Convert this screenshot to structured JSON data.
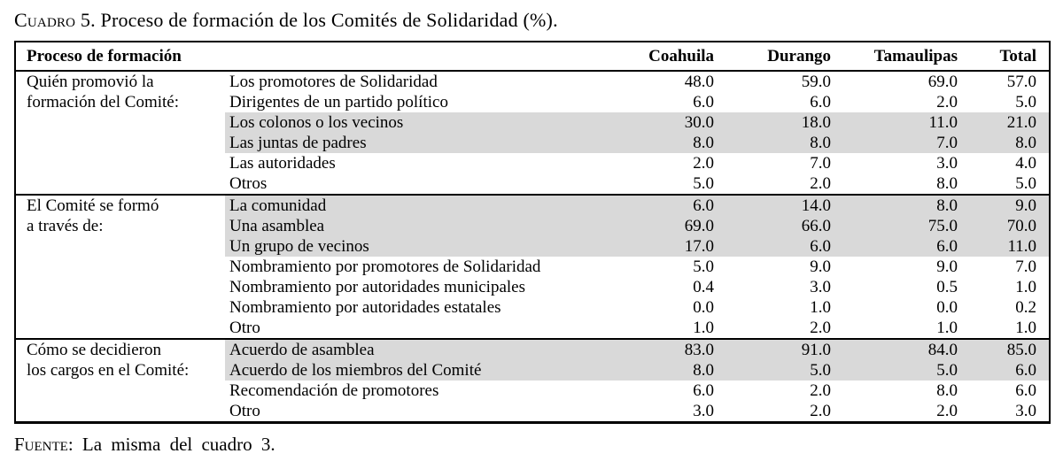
{
  "title": {
    "prefix": "Cuadro 5.",
    "text": "Proceso de formación de los Comités de Solidaridad (%)."
  },
  "table": {
    "header": {
      "col_process": "Proceso de formación",
      "columns": [
        "Coahuila",
        "Durango",
        "Tamaulipas",
        "Total"
      ]
    },
    "sections": [
      {
        "category": [
          "Quién promovió la",
          "formación del Comité:"
        ],
        "rows": [
          {
            "label": "Los promotores de Solidaridad",
            "values": [
              "48.0",
              "59.0",
              "69.0",
              "57.0"
            ],
            "shaded": false
          },
          {
            "label": "Dirigentes de un partido político",
            "values": [
              "6.0",
              "6.0",
              "2.0",
              "5.0"
            ],
            "shaded": false
          },
          {
            "label": "Los colonos o los vecinos",
            "values": [
              "30.0",
              "18.0",
              "11.0",
              "21.0"
            ],
            "shaded": true
          },
          {
            "label": "Las juntas de padres",
            "values": [
              "8.0",
              "8.0",
              "7.0",
              "8.0"
            ],
            "shaded": true
          },
          {
            "label": "Las autoridades",
            "values": [
              "2.0",
              "7.0",
              "3.0",
              "4.0"
            ],
            "shaded": false
          },
          {
            "label": "Otros",
            "values": [
              "5.0",
              "2.0",
              "8.0",
              "5.0"
            ],
            "shaded": false
          }
        ]
      },
      {
        "category": [
          "El Comité se formó",
          "a través de:"
        ],
        "rows": [
          {
            "label": "La comunidad",
            "values": [
              "6.0",
              "14.0",
              "8.0",
              "9.0"
            ],
            "shaded": true
          },
          {
            "label": "Una asamblea",
            "values": [
              "69.0",
              "66.0",
              "75.0",
              "70.0"
            ],
            "shaded": true
          },
          {
            "label": "Un grupo de vecinos",
            "values": [
              "17.0",
              "6.0",
              "6.0",
              "11.0"
            ],
            "shaded": true
          },
          {
            "label": "Nombramiento por promotores de Solidaridad",
            "values": [
              "5.0",
              "9.0",
              "9.0",
              "7.0"
            ],
            "shaded": false
          },
          {
            "label": "Nombramiento por autoridades municipales",
            "values": [
              "0.4",
              "3.0",
              "0.5",
              "1.0"
            ],
            "shaded": false
          },
          {
            "label": "Nombramiento por autoridades estatales",
            "values": [
              "0.0",
              "1.0",
              "0.0",
              "0.2"
            ],
            "shaded": false
          },
          {
            "label": "Otro",
            "values": [
              "1.0",
              "2.0",
              "1.0",
              "1.0"
            ],
            "shaded": false
          }
        ]
      },
      {
        "category": [
          "Cómo se decidieron",
          "los cargos en el Comité:"
        ],
        "rows": [
          {
            "label": "Acuerdo de asamblea",
            "values": [
              "83.0",
              "91.0",
              "84.0",
              "85.0"
            ],
            "shaded": true
          },
          {
            "label": "Acuerdo de los miembros del Comité",
            "values": [
              "8.0",
              "5.0",
              "5.0",
              "6.0"
            ],
            "shaded": true
          },
          {
            "label": "Recomendación de promotores",
            "values": [
              "6.0",
              "2.0",
              "8.0",
              "6.0"
            ],
            "shaded": false
          },
          {
            "label": "Otro",
            "values": [
              "3.0",
              "2.0",
              "2.0",
              "3.0"
            ],
            "shaded": false
          }
        ]
      }
    ]
  },
  "source": {
    "prefix": "Fuente:",
    "text": "La misma del cuadro 3."
  },
  "colors": {
    "shading": "#d9d9d9",
    "border": "#000000",
    "text": "#000000",
    "background": "#ffffff"
  }
}
